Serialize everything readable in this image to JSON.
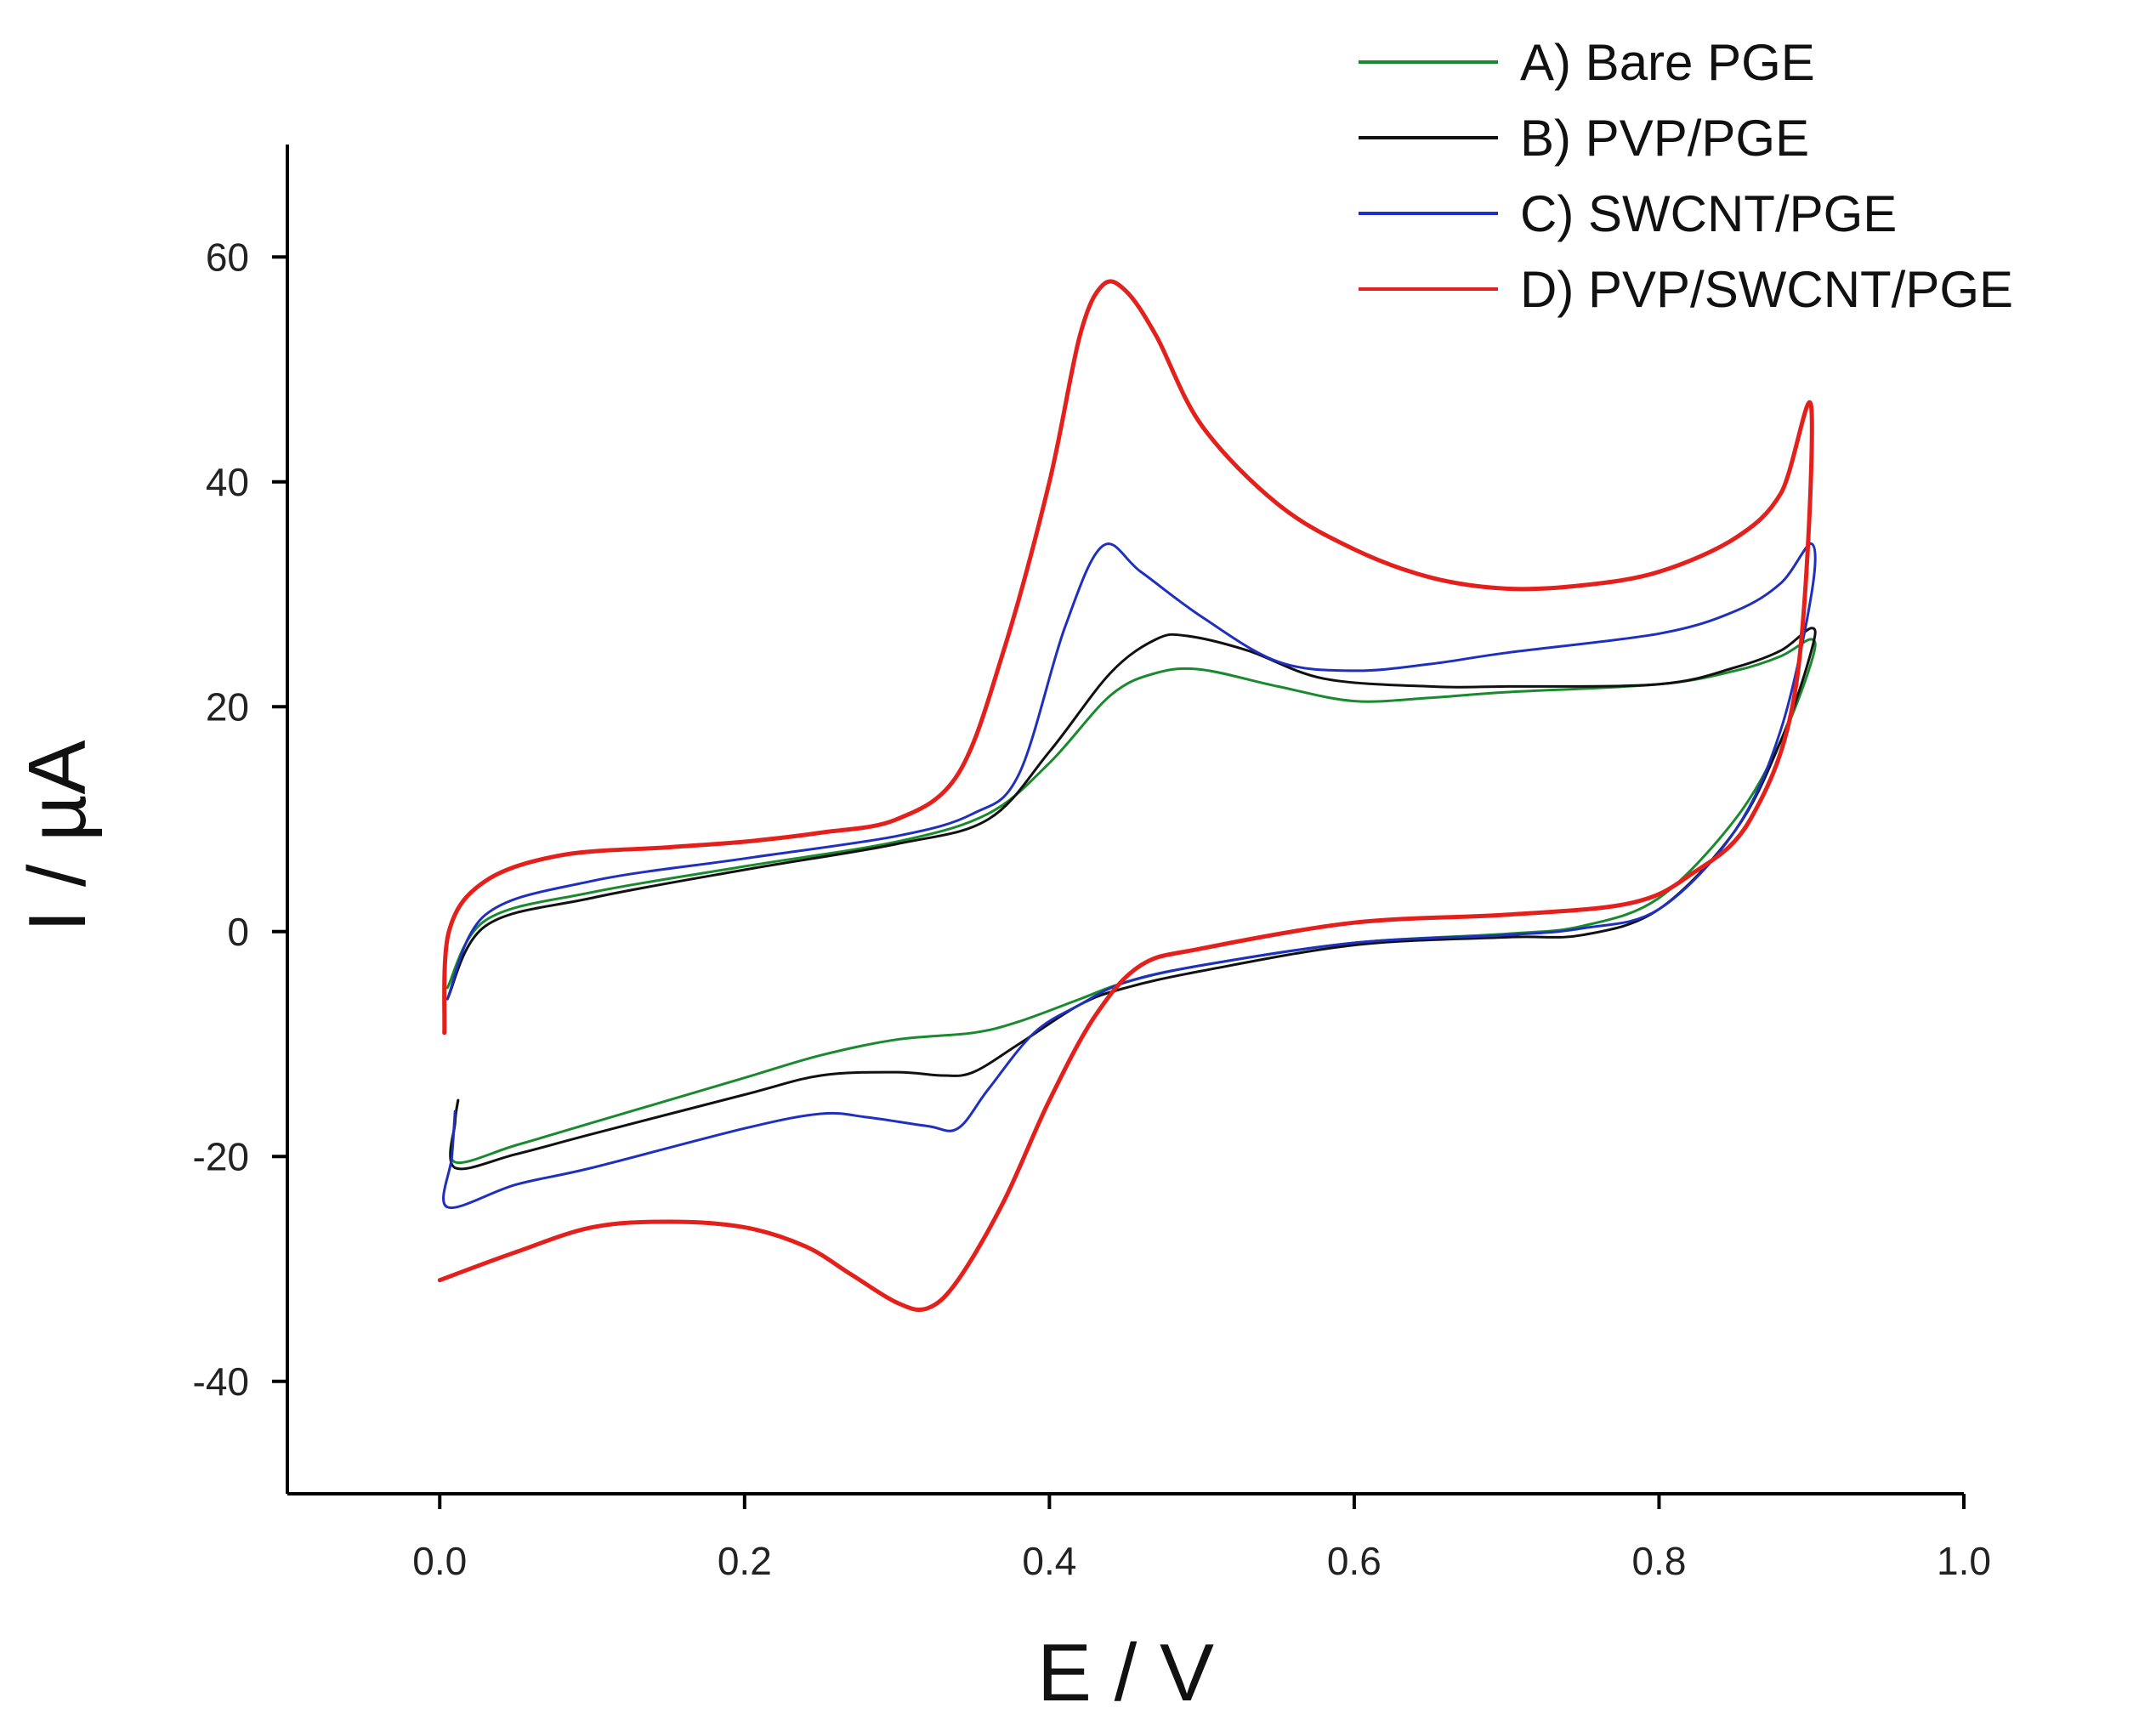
{
  "chart_data": {
    "type": "line",
    "title": "",
    "xlabel": "E / V",
    "ylabel": "I / µA",
    "xlim": [
      -0.1,
      1.0
    ],
    "ylim": [
      -50,
      70
    ],
    "xticks": [
      "0.0",
      "0.2",
      "0.4",
      "0.6",
      "0.8",
      "1.0"
    ],
    "xtick_values": [
      0.0,
      0.2,
      0.4,
      0.6,
      0.8,
      1.0
    ],
    "yticks": [
      "-40",
      "-20",
      "0",
      "20",
      "40",
      "60"
    ],
    "ytick_values": [
      -40,
      -20,
      0,
      20,
      40,
      60
    ],
    "grid": false,
    "legend_position": "top-right",
    "series": [
      {
        "name": "A) Bare PGE",
        "color": "#1a8a2e",
        "points": [
          [
            0.005,
            -5
          ],
          [
            0.03,
            1
          ],
          [
            0.1,
            3.5
          ],
          [
            0.2,
            5.8
          ],
          [
            0.3,
            8
          ],
          [
            0.36,
            10.5
          ],
          [
            0.4,
            15
          ],
          [
            0.44,
            21
          ],
          [
            0.47,
            23
          ],
          [
            0.5,
            23.3
          ],
          [
            0.55,
            21.8
          ],
          [
            0.6,
            20.5
          ],
          [
            0.65,
            20.8
          ],
          [
            0.7,
            21.3
          ],
          [
            0.8,
            22
          ],
          [
            0.85,
            23.2
          ],
          [
            0.88,
            24.5
          ],
          [
            0.9,
            26
          ],
          [
            0.9,
            24
          ],
          [
            0.88,
            17
          ],
          [
            0.85,
            10
          ],
          [
            0.8,
            3
          ],
          [
            0.75,
            0.5
          ],
          [
            0.7,
            -0.2
          ],
          [
            0.6,
            -1
          ],
          [
            0.5,
            -3
          ],
          [
            0.45,
            -4.5
          ],
          [
            0.42,
            -6
          ],
          [
            0.38,
            -8
          ],
          [
            0.35,
            -9
          ],
          [
            0.3,
            -9.6
          ],
          [
            0.25,
            -11
          ],
          [
            0.2,
            -13
          ],
          [
            0.1,
            -17
          ],
          [
            0.05,
            -19
          ],
          [
            0.01,
            -20.5
          ],
          [
            0.01,
            -17
          ],
          [
            0.012,
            -15
          ]
        ]
      },
      {
        "name": "B) PVP/PGE",
        "color": "#111111",
        "points": [
          [
            0.005,
            -6
          ],
          [
            0.03,
            0.5
          ],
          [
            0.1,
            3
          ],
          [
            0.2,
            5.5
          ],
          [
            0.3,
            7.8
          ],
          [
            0.36,
            10
          ],
          [
            0.4,
            16
          ],
          [
            0.44,
            23
          ],
          [
            0.47,
            26
          ],
          [
            0.49,
            26.3
          ],
          [
            0.53,
            25
          ],
          [
            0.58,
            22.5
          ],
          [
            0.65,
            21.8
          ],
          [
            0.7,
            21.8
          ],
          [
            0.8,
            22
          ],
          [
            0.85,
            23.5
          ],
          [
            0.88,
            25
          ],
          [
            0.9,
            27
          ],
          [
            0.9,
            25
          ],
          [
            0.88,
            17
          ],
          [
            0.85,
            9
          ],
          [
            0.8,
            2
          ],
          [
            0.75,
            -0.3
          ],
          [
            0.7,
            -0.5
          ],
          [
            0.6,
            -1.2
          ],
          [
            0.5,
            -3.5
          ],
          [
            0.45,
            -5
          ],
          [
            0.42,
            -6.5
          ],
          [
            0.38,
            -10
          ],
          [
            0.35,
            -12.5
          ],
          [
            0.33,
            -12.8
          ],
          [
            0.3,
            -12.5
          ],
          [
            0.25,
            -12.8
          ],
          [
            0.2,
            -14.5
          ],
          [
            0.1,
            -18
          ],
          [
            0.05,
            -19.8
          ],
          [
            0.01,
            -21
          ],
          [
            0.01,
            -17
          ],
          [
            0.012,
            -15
          ]
        ]
      },
      {
        "name": "C) SWCNT/PGE",
        "color": "#1f2fbf",
        "points": [
          [
            0.005,
            -6
          ],
          [
            0.03,
            1.5
          ],
          [
            0.1,
            4.5
          ],
          [
            0.2,
            6.5
          ],
          [
            0.3,
            8.5
          ],
          [
            0.35,
            10.5
          ],
          [
            0.38,
            14
          ],
          [
            0.41,
            27
          ],
          [
            0.435,
            34.3
          ],
          [
            0.46,
            32
          ],
          [
            0.5,
            28
          ],
          [
            0.55,
            24
          ],
          [
            0.6,
            23.2
          ],
          [
            0.65,
            23.8
          ],
          [
            0.7,
            24.8
          ],
          [
            0.8,
            26.5
          ],
          [
            0.85,
            28.5
          ],
          [
            0.88,
            31
          ],
          [
            0.9,
            34.5
          ],
          [
            0.9,
            30
          ],
          [
            0.88,
            18
          ],
          [
            0.85,
            9
          ],
          [
            0.8,
            2
          ],
          [
            0.75,
            0.3
          ],
          [
            0.7,
            -0.3
          ],
          [
            0.6,
            -1
          ],
          [
            0.5,
            -3
          ],
          [
            0.45,
            -4.5
          ],
          [
            0.42,
            -6.5
          ],
          [
            0.39,
            -9
          ],
          [
            0.36,
            -14
          ],
          [
            0.34,
            -17.5
          ],
          [
            0.32,
            -17.3
          ],
          [
            0.28,
            -16.5
          ],
          [
            0.25,
            -16.2
          ],
          [
            0.2,
            -17.5
          ],
          [
            0.1,
            -21
          ],
          [
            0.05,
            -22.5
          ],
          [
            0.005,
            -24.5
          ],
          [
            0.008,
            -20
          ],
          [
            0.01,
            -16
          ]
        ]
      },
      {
        "name": "D) PVP/SWCNT/PGE",
        "color": "#e3201b",
        "points": [
          [
            0.003,
            -9
          ],
          [
            0.006,
            0
          ],
          [
            0.03,
            4.5
          ],
          [
            0.08,
            6.8
          ],
          [
            0.15,
            7.5
          ],
          [
            0.2,
            8
          ],
          [
            0.25,
            8.8
          ],
          [
            0.3,
            10
          ],
          [
            0.34,
            14
          ],
          [
            0.37,
            25
          ],
          [
            0.4,
            40
          ],
          [
            0.42,
            53
          ],
          [
            0.435,
            57.5
          ],
          [
            0.45,
            57
          ],
          [
            0.47,
            53
          ],
          [
            0.5,
            45
          ],
          [
            0.55,
            38
          ],
          [
            0.6,
            34
          ],
          [
            0.65,
            31.5
          ],
          [
            0.7,
            30.5
          ],
          [
            0.75,
            30.8
          ],
          [
            0.8,
            32
          ],
          [
            0.85,
            35
          ],
          [
            0.88,
            39
          ],
          [
            0.9,
            46.5
          ],
          [
            0.89,
            22
          ],
          [
            0.86,
            10
          ],
          [
            0.82,
            5
          ],
          [
            0.78,
            2.5
          ],
          [
            0.7,
            1.5
          ],
          [
            0.6,
            0.8
          ],
          [
            0.5,
            -1.5
          ],
          [
            0.46,
            -3
          ],
          [
            0.43,
            -7.5
          ],
          [
            0.4,
            -15
          ],
          [
            0.37,
            -24
          ],
          [
            0.34,
            -31
          ],
          [
            0.32,
            -33.5
          ],
          [
            0.3,
            -33
          ],
          [
            0.27,
            -30.5
          ],
          [
            0.24,
            -28
          ],
          [
            0.2,
            -26.3
          ],
          [
            0.15,
            -25.8
          ],
          [
            0.1,
            -26.3
          ],
          [
            0.05,
            -28.5
          ],
          [
            0.0,
            -31
          ]
        ]
      }
    ]
  }
}
